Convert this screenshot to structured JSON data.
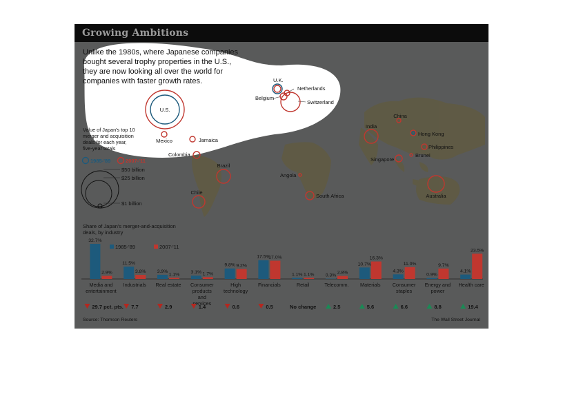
{
  "header": {
    "title": "Growing Ambitions"
  },
  "intro": "Unlike the 1980s, where Japanese companies bought several trophy properties in the U.S., they are now looking all over the world for companies with faster growth rates.",
  "colors": {
    "series_1985": "#1d5a7c",
    "series_2007": "#c0372f",
    "background": "#595a5a",
    "title_bar": "#0c0c0c",
    "highlight": "#ffffff",
    "up": "#1a8a55",
    "down": "#b5271f"
  },
  "map": {
    "legend_title": "Value of Japan's top 10 merger and acquisition deals for each year, five-year totals",
    "legend_1985": "1985-'89",
    "legend_2007": "2007-'11",
    "size_labels": [
      "$50 billion",
      "$25 billion",
      "$1 billion"
    ],
    "countries": [
      "U.K.",
      "Netherlands",
      "Belgium",
      "Switzerland",
      "U.S.",
      "Mexico",
      "Jamaica",
      "Colombia",
      "Brazil",
      "Chile",
      "Angola",
      "South Africa",
      "India",
      "China",
      "Hong Kong",
      "Philippines",
      "Singapore",
      "Brunei",
      "Australia"
    ]
  },
  "chart_data": {
    "type": "bar",
    "title": "Share of Japan's merger-and-acquisition deals, by industry",
    "categories": [
      "Media and entertainment",
      "Industrials",
      "Real estate",
      "Consumer products and services",
      "High technology",
      "Financials",
      "Retail",
      "Telecomm.",
      "Materials",
      "Consumer staples",
      "Energy and power",
      "Health care"
    ],
    "series": [
      {
        "name": "1985-'89",
        "values": [
          32.7,
          11.5,
          3.9,
          3.1,
          9.8,
          17.5,
          1.1,
          0.3,
          10.7,
          4.3,
          0.9,
          4.1
        ]
      },
      {
        "name": "2007-'11",
        "values": [
          2.9,
          3.8,
          1.1,
          1.7,
          9.2,
          17.0,
          1.1,
          2.8,
          16.3,
          11.0,
          9.7,
          23.5
        ]
      }
    ],
    "value_labels_1985": [
      "32.7%",
      "11.5%",
      "3.9%",
      "3.1%",
      "9.8%",
      "17.5%",
      "1.1%",
      "0.3%",
      "10.7%",
      "4.3%",
      "0.9%",
      "4.1%"
    ],
    "value_labels_2007": [
      "2.9%",
      "3.8%",
      "1.1%",
      "1.7%",
      "9.2%",
      "17.0%",
      "1.1%",
      "2.8%",
      "16.3%",
      "11.0%",
      "9.7%",
      "23.5%"
    ],
    "changes": [
      {
        "dir": "down",
        "label": "29.7 pct. pts."
      },
      {
        "dir": "down",
        "label": "7.7"
      },
      {
        "dir": "down",
        "label": "2.9"
      },
      {
        "dir": "down",
        "label": "1.4"
      },
      {
        "dir": "down",
        "label": "0.6"
      },
      {
        "dir": "down",
        "label": "0.5"
      },
      {
        "dir": "none",
        "label": "No change"
      },
      {
        "dir": "up",
        "label": "2.5"
      },
      {
        "dir": "up",
        "label": "5.6"
      },
      {
        "dir": "up",
        "label": "6.6"
      },
      {
        "dir": "up",
        "label": "8.8"
      },
      {
        "dir": "up",
        "label": "19.4"
      }
    ],
    "ylim": [
      0,
      35
    ]
  },
  "footer": {
    "source": "Source: Thomson Reuters",
    "credit": "The Wall Street Journal"
  }
}
